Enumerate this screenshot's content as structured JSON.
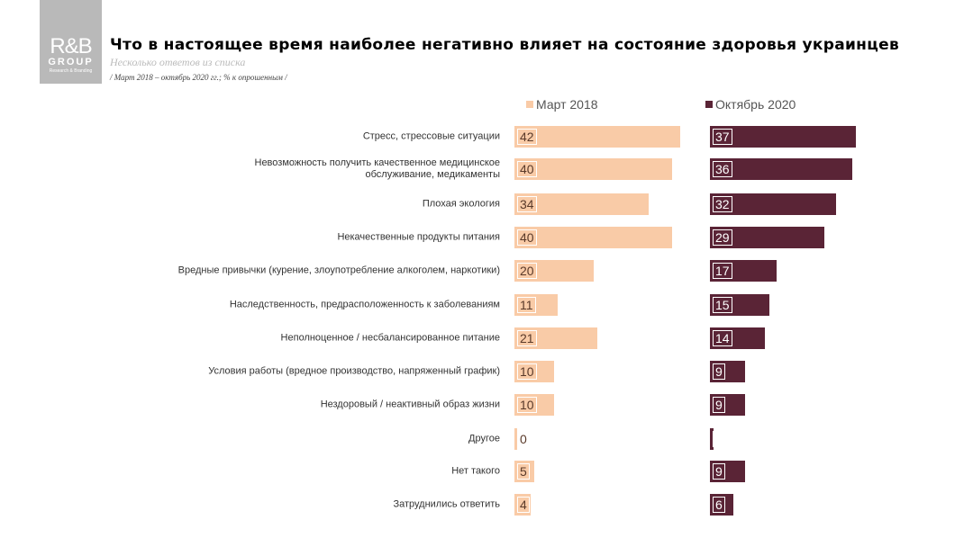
{
  "logo": {
    "line1": "R&B",
    "line2": "GROUP",
    "line3": "Research & Branding"
  },
  "header": {
    "title": "Что в настоящее время наиболее негативно влияет на состояние здоровья украинцев",
    "subtitle": "Несколько ответов из списка",
    "period": "/ Март 2018 – октябрь 2020 гг.; % к опрошенным /"
  },
  "chart_data": {
    "type": "bar",
    "orientation": "horizontal",
    "legend_position": "top",
    "categories": [
      "Стресс, стрессовые ситуации",
      "Невозможность получить качественное медицинское обслуживание, медикаменты",
      "Плохая экология",
      "Некачественные продукты питания",
      "Вредные привычки (курение, злоупотребление алкоголем, наркотики)",
      "Наследственность, предрасположенность к заболеваниям",
      "Неполноценное / несбалансированное питание",
      "Условия работы (вредное производство, напряженный график)",
      "Нездоровый / неактивный образ жизни",
      "Другое",
      "Нет такого",
      "Затруднились ответить"
    ],
    "series": [
      {
        "name": "Март 2018",
        "color": "#f9cba7",
        "label_color": "#5a3a2a",
        "values": [
          42,
          40,
          34,
          40,
          20,
          11,
          21,
          10,
          10,
          0,
          5,
          4
        ]
      },
      {
        "name": "Октябрь 2020",
        "color": "#5a2436",
        "label_color": "#ffffff",
        "values": [
          37,
          36,
          32,
          29,
          17,
          15,
          14,
          9,
          9,
          1,
          9,
          6
        ]
      }
    ]
  }
}
